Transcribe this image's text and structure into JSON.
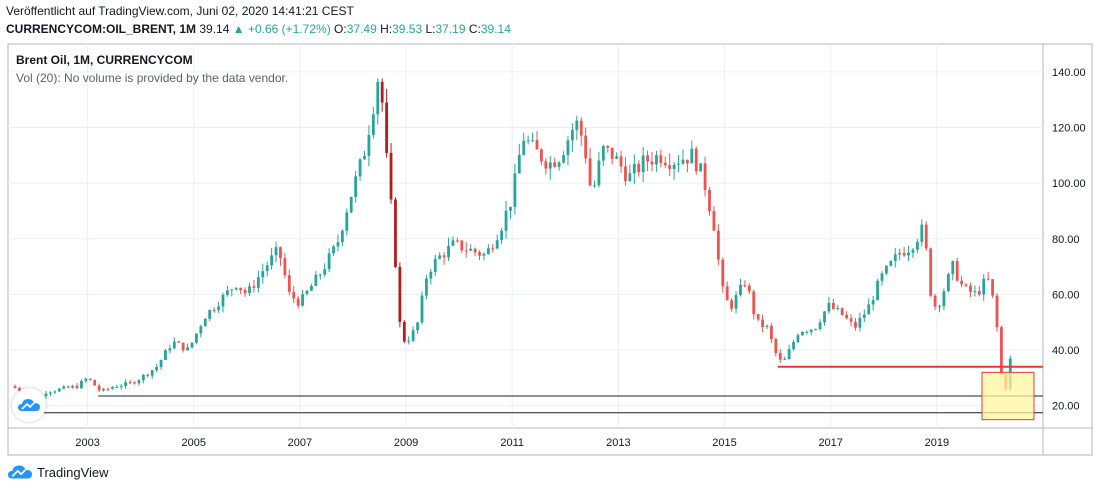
{
  "header": {
    "published": "Veröffentlicht auf TradingView.com, Juni 02, 2020 14:41:21 CEST",
    "symbol": "CURRENCYCOM:OIL_BRENT, 1M",
    "last": "39.14",
    "change": "+0.66 (+1.72%)",
    "o_label": "O:",
    "o_value": "37.49",
    "h_label": "H:",
    "h_value": "39.53",
    "l_label": "L:",
    "l_value": "37.19",
    "c_label": "C:",
    "c_value": "39.14"
  },
  "legend": {
    "name": "Brent Oil, 1M, CURRENCYCOM",
    "volume": "Vol (20): No volume is provided by the data vendor."
  },
  "footer": {
    "brand": "TradingView"
  },
  "colors": {
    "up": "#26a69a",
    "down": "#ef5350",
    "dark_down": "#b71c1c",
    "grid": "#eceff2",
    "box_fill": "#fff59d",
    "box_border": "#e53935"
  },
  "chart_data": {
    "type": "candlestick",
    "title": "Brent Oil, 1M, CURRENCYCOM",
    "ylim": [
      12,
      150
    ],
    "xlim": [
      2001.5,
      2021.0
    ],
    "y_ticks": [
      20,
      40,
      60,
      80,
      100,
      120,
      140
    ],
    "y_tick_labels": [
      "20.00",
      "40.00",
      "60.00",
      "80.00",
      "100.00",
      "120.00",
      "140.00"
    ],
    "x_ticks": [
      2003,
      2005,
      2007,
      2009,
      2011,
      2013,
      2015,
      2017,
      2019
    ],
    "x_tick_labels": [
      "2003",
      "2005",
      "2007",
      "2009",
      "2011",
      "2013",
      "2015",
      "2017",
      "2019"
    ],
    "grid": true,
    "close_series": [
      [
        2001.55,
        27
      ],
      [
        2001.8,
        25
      ],
      [
        2002.0,
        20
      ],
      [
        2002.2,
        25
      ],
      [
        2002.5,
        26
      ],
      [
        2002.8,
        27
      ],
      [
        2003.0,
        30
      ],
      [
        2003.25,
        25
      ],
      [
        2003.5,
        27
      ],
      [
        2003.8,
        28
      ],
      [
        2004.0,
        30
      ],
      [
        2004.3,
        34
      ],
      [
        2004.6,
        43
      ],
      [
        2004.9,
        40
      ],
      [
        2005.2,
        52
      ],
      [
        2005.6,
        60
      ],
      [
        2005.8,
        64
      ],
      [
        2006.0,
        60
      ],
      [
        2006.35,
        70
      ],
      [
        2006.6,
        76
      ],
      [
        2006.8,
        60
      ],
      [
        2007.0,
        57
      ],
      [
        2007.4,
        68
      ],
      [
        2007.7,
        78
      ],
      [
        2007.9,
        92
      ],
      [
        2008.2,
        110
      ],
      [
        2008.45,
        135
      ],
      [
        2008.5,
        143
      ],
      [
        2008.6,
        115
      ],
      [
        2008.75,
        85
      ],
      [
        2008.9,
        45
      ],
      [
        2009.0,
        43
      ],
      [
        2009.2,
        48
      ],
      [
        2009.4,
        68
      ],
      [
        2009.6,
        73
      ],
      [
        2009.9,
        78
      ],
      [
        2010.2,
        76
      ],
      [
        2010.5,
        74
      ],
      [
        2010.8,
        85
      ],
      [
        2011.0,
        95
      ],
      [
        2011.2,
        117
      ],
      [
        2011.4,
        112
      ],
      [
        2011.7,
        107
      ],
      [
        2011.9,
        110
      ],
      [
        2012.2,
        122
      ],
      [
        2012.35,
        115
      ],
      [
        2012.5,
        95
      ],
      [
        2012.7,
        112
      ],
      [
        2012.9,
        110
      ],
      [
        2013.2,
        102
      ],
      [
        2013.5,
        108
      ],
      [
        2013.8,
        110
      ],
      [
        2014.0,
        108
      ],
      [
        2014.4,
        110
      ],
      [
        2014.6,
        102
      ],
      [
        2014.8,
        85
      ],
      [
        2014.95,
        62
      ],
      [
        2015.1,
        55
      ],
      [
        2015.4,
        65
      ],
      [
        2015.6,
        50
      ],
      [
        2015.8,
        48
      ],
      [
        2016.0,
        37
      ],
      [
        2016.1,
        35
      ],
      [
        2016.4,
        47
      ],
      [
        2016.7,
        48
      ],
      [
        2016.95,
        56
      ],
      [
        2017.2,
        53
      ],
      [
        2017.45,
        48
      ],
      [
        2017.7,
        55
      ],
      [
        2017.95,
        66
      ],
      [
        2018.3,
        75
      ],
      [
        2018.5,
        77
      ],
      [
        2018.75,
        84
      ],
      [
        2018.9,
        58
      ],
      [
        2019.0,
        55
      ],
      [
        2019.3,
        70
      ],
      [
        2019.5,
        62
      ],
      [
        2019.75,
        60
      ],
      [
        2019.95,
        66
      ],
      [
        2020.1,
        55
      ],
      [
        2020.2,
        34
      ],
      [
        2020.27,
        22
      ],
      [
        2020.35,
        34
      ],
      [
        2020.42,
        39.14
      ]
    ],
    "annotations": [
      {
        "type": "hline",
        "y": 34,
        "x_from": 2016.0,
        "label": ""
      },
      {
        "type": "hline",
        "y": 23.5,
        "x_from": 2003.2,
        "label": ""
      },
      {
        "type": "hline",
        "y": 17.5,
        "x_from": 2001.8,
        "label": ""
      },
      {
        "type": "box",
        "x_from": 2019.85,
        "x_to": 2020.83,
        "y_from": 32,
        "y_to": 15,
        "label": ""
      }
    ]
  }
}
